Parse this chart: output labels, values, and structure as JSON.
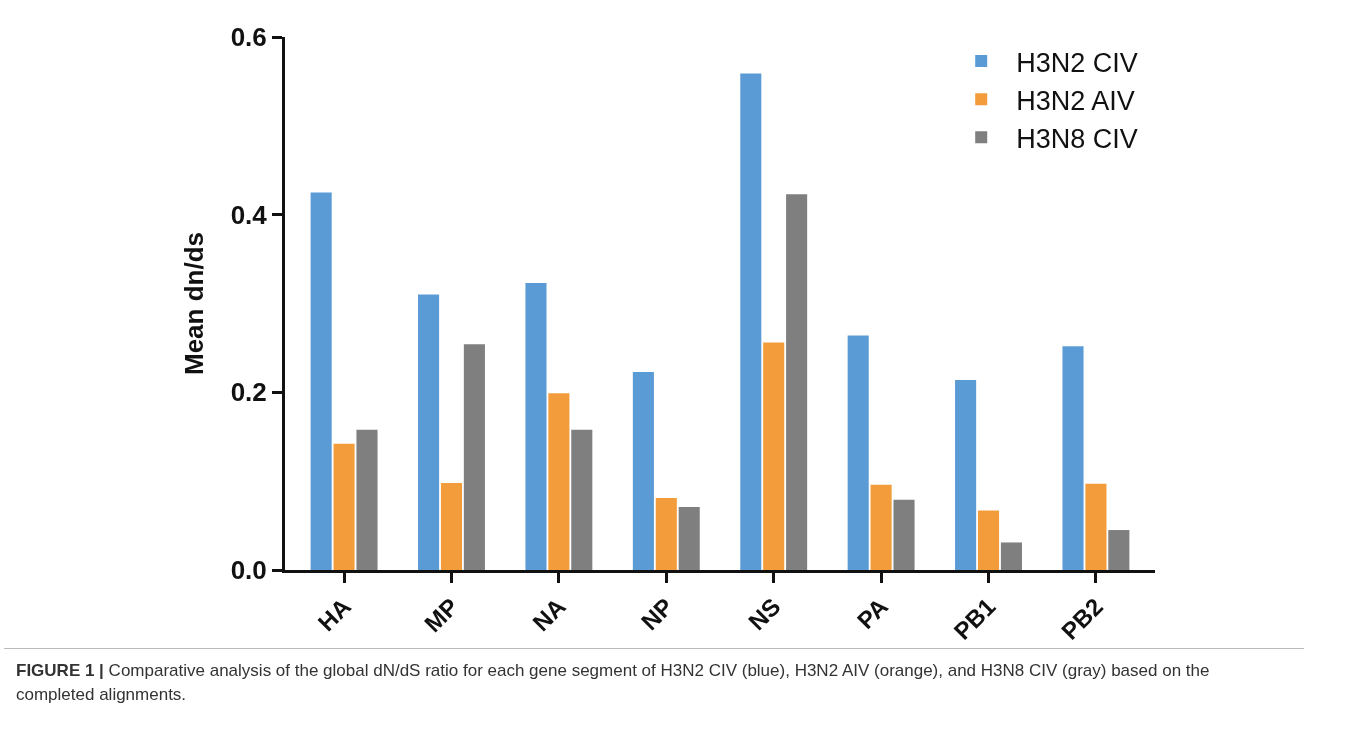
{
  "chart_data": {
    "type": "bar",
    "ylabel": "Mean dn/ds",
    "categories": [
      "HA",
      "MP",
      "NA",
      "NP",
      "NS",
      "PA",
      "PB1",
      "PB2"
    ],
    "series": [
      {
        "name": "H3N2 CIV",
        "color": "#5b9bd5",
        "values": [
          0.425,
          0.31,
          0.323,
          0.223,
          0.559,
          0.264,
          0.214,
          0.252
        ]
      },
      {
        "name": "H3N2 AIV",
        "color": "#f39c3b",
        "values": [
          0.142,
          0.098,
          0.199,
          0.081,
          0.256,
          0.096,
          0.067,
          0.097
        ]
      },
      {
        "name": "H3N8 CIV",
        "color": "#7f7f7f",
        "values": [
          0.158,
          0.254,
          0.158,
          0.071,
          0.423,
          0.079,
          0.031,
          0.045
        ]
      }
    ],
    "ylim": [
      0,
      0.6
    ],
    "yticks": [
      {
        "value": 0,
        "label": "0.0"
      },
      {
        "value": 0.2,
        "label": "0.2"
      },
      {
        "value": 0.4,
        "label": "0.4"
      },
      {
        "value": 0.6,
        "label": "0.6"
      }
    ],
    "grid": false,
    "legend": "top right",
    "annotations": [
      "**FIGURE 1 |** Comparative analysis of the global dN/dS ratio for each gene segment of H3N2 CIV (blue), H3N2 AIV (orange), and H3N8 CIV (gray) based on the completed alignments."
    ]
  }
}
